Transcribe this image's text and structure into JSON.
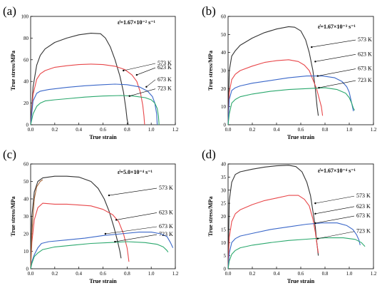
{
  "colors": {
    "573": "#333333",
    "623": "#e8474a",
    "673": "#3a67c9",
    "723": "#2aa86d",
    "brown": "#a9673a",
    "axis": "#000000"
  },
  "chart_data": [
    {
      "panel": "(a)",
      "type": "line",
      "rate_label": "ε̇=1.67×10⁻² s⁻¹",
      "xlabel": "True strain",
      "ylabel": "True stress/MPa",
      "xlim": [
        0,
        1.2
      ],
      "ylim": [
        0,
        100
      ],
      "xticks": [
        "0.0",
        "0.2",
        "0.4",
        "0.6",
        "0.8",
        "1.0",
        "1.2"
      ],
      "yticks": [
        "0",
        "20",
        "40",
        "60",
        "80",
        "100"
      ],
      "series": [
        {
          "name": "573 K",
          "color_key": "573",
          "x": [
            0,
            0.02,
            0.05,
            0.08,
            0.12,
            0.2,
            0.3,
            0.4,
            0.5,
            0.58,
            0.62,
            0.66,
            0.7,
            0.74,
            0.77,
            0.79,
            0.8,
            0.81
          ],
          "y": [
            0,
            35,
            55,
            64,
            70,
            76,
            80,
            83,
            84.5,
            84,
            80,
            72,
            60,
            45,
            30,
            15,
            5,
            0
          ]
        },
        {
          "name": "623 K",
          "color_key": "623",
          "x": [
            0,
            0.02,
            0.05,
            0.08,
            0.12,
            0.2,
            0.3,
            0.4,
            0.5,
            0.6,
            0.7,
            0.78,
            0.84,
            0.88,
            0.91,
            0.93,
            0.94,
            0.945
          ],
          "y": [
            0,
            28,
            42,
            47,
            50,
            53,
            54.5,
            55.5,
            56,
            55.5,
            54,
            51,
            46,
            40,
            30,
            18,
            8,
            0
          ]
        },
        {
          "name": "673 K",
          "color_key": "673",
          "x": [
            0,
            0.02,
            0.05,
            0.08,
            0.15,
            0.3,
            0.45,
            0.6,
            0.7,
            0.8,
            0.9,
            0.97,
            1.01,
            1.03,
            1.045,
            1.05
          ],
          "y": [
            0,
            22,
            29,
            31,
            32.5,
            34.5,
            36,
            37,
            37.5,
            37,
            35,
            31,
            26,
            20,
            10,
            0
          ]
        },
        {
          "name": "723 K",
          "color_key": "723",
          "x": [
            0,
            0.02,
            0.05,
            0.08,
            0.12,
            0.2,
            0.3,
            0.45,
            0.6,
            0.75,
            0.85,
            0.95,
            1.0,
            1.03,
            1.05,
            1.06,
            1.065
          ],
          "y": [
            0,
            10,
            17,
            20,
            22,
            23,
            24,
            25.5,
            26.5,
            27,
            26.5,
            25,
            23,
            20,
            15,
            8,
            0
          ]
        }
      ],
      "annotations": [
        {
          "text": "573 K",
          "series_index": 0,
          "at": [
            0.77,
            50
          ]
        },
        {
          "text": "623 K",
          "series_index": 1,
          "at": [
            0.88,
            46
          ]
        },
        {
          "text": "673 K",
          "series_index": 2,
          "at": [
            0.96,
            35
          ]
        },
        {
          "text": "723 K",
          "series_index": 3,
          "at": [
            0.82,
            26.5
          ]
        }
      ]
    },
    {
      "panel": "(b)",
      "type": "line",
      "rate_label": "ε̇=1.67×10⁻³ s⁻¹",
      "xlabel": "True strain",
      "ylabel": "True stress/MPa",
      "xlim": [
        0,
        1.2
      ],
      "ylim": [
        0,
        60
      ],
      "xticks": [
        "0.0",
        "0.2",
        "0.4",
        "0.6",
        "0.8",
        "1.0",
        "1.2"
      ],
      "yticks": [
        "0",
        "10",
        "20",
        "30",
        "40",
        "50",
        "60"
      ],
      "series": [
        {
          "name": "573 K",
          "color_key": "573",
          "x": [
            0,
            0.01,
            0.03,
            0.06,
            0.1,
            0.2,
            0.3,
            0.4,
            0.5,
            0.55,
            0.6,
            0.64,
            0.67,
            0.7,
            0.72,
            0.735,
            0.745
          ],
          "y": [
            0,
            30,
            38,
            41,
            44,
            48,
            51,
            53,
            54.3,
            54,
            52,
            47,
            40,
            30,
            20,
            10,
            5
          ]
        },
        {
          "name": "623 K",
          "color_key": "623",
          "x": [
            0,
            0.01,
            0.03,
            0.06,
            0.1,
            0.2,
            0.3,
            0.4,
            0.5,
            0.58,
            0.63,
            0.67,
            0.7,
            0.73,
            0.75,
            0.77,
            0.78
          ],
          "y": [
            0,
            18,
            25,
            28,
            30,
            32.5,
            34.5,
            35.5,
            36,
            35,
            33,
            30,
            25,
            20,
            15,
            10,
            5
          ]
        },
        {
          "name": "673 K",
          "color_key": "673",
          "x": [
            0,
            0.01,
            0.03,
            0.06,
            0.1,
            0.2,
            0.35,
            0.5,
            0.65,
            0.78,
            0.88,
            0.94,
            0.98,
            1.0,
            1.02,
            1.035
          ],
          "y": [
            0,
            14,
            19,
            20.5,
            21.5,
            23,
            24.5,
            26,
            27,
            27,
            26,
            24,
            21,
            18,
            12,
            7.5
          ]
        },
        {
          "name": "723 K",
          "color_key": "723",
          "x": [
            0,
            0.01,
            0.03,
            0.06,
            0.1,
            0.2,
            0.35,
            0.5,
            0.65,
            0.8,
            0.9,
            0.97,
            1.0,
            1.02,
            1.035,
            1.045
          ],
          "y": [
            0,
            6,
            12,
            14,
            15.5,
            17,
            18.5,
            19.5,
            20,
            20.5,
            19.5,
            17.5,
            15,
            12,
            9,
            8
          ]
        }
      ],
      "annotations": [
        {
          "text": "573 K",
          "series_index": 0,
          "at": [
            0.69,
            43
          ]
        },
        {
          "text": "623 K",
          "series_index": 1,
          "at": [
            0.72,
            35
          ]
        },
        {
          "text": "673 K",
          "series_index": 2,
          "at": [
            0.74,
            27
          ]
        },
        {
          "text": "723 K",
          "series_index": 3,
          "at": [
            0.75,
            20.5
          ]
        }
      ]
    },
    {
      "panel": "(c)",
      "type": "line",
      "rate_label": "ε̇=5.0×10⁻⁴ s⁻¹",
      "xlabel": "True strain",
      "ylabel": "True stress/MPa",
      "xlim": [
        0,
        1.2
      ],
      "ylim": [
        0,
        60
      ],
      "xticks": [
        "0.0",
        "0.2",
        "0.4",
        "0.6",
        "0.8",
        "1.0",
        "1.2"
      ],
      "yticks": [
        "0",
        "10",
        "20",
        "30",
        "40",
        "50",
        "60"
      ],
      "series": [
        {
          "name": "573 K",
          "color_key": "573",
          "x": [
            0,
            0.01,
            0.03,
            0.06,
            0.1,
            0.2,
            0.3,
            0.4,
            0.5,
            0.56,
            0.61,
            0.65,
            0.69,
            0.72,
            0.74,
            0.75
          ],
          "y": [
            0,
            30,
            44,
            50,
            52,
            53,
            53,
            52.5,
            50,
            46,
            40,
            33,
            24,
            16,
            10,
            6
          ]
        },
        {
          "name": "623 K",
          "color_key": "623",
          "x": [
            0,
            0.01,
            0.03,
            0.06,
            0.1,
            0.2,
            0.3,
            0.4,
            0.5,
            0.6,
            0.68,
            0.73,
            0.77,
            0.8,
            0.81,
            0.815
          ],
          "y": [
            0,
            15,
            28,
            35,
            37.5,
            37,
            37,
            36.5,
            36,
            34,
            31,
            27,
            20,
            12,
            7,
            4
          ]
        },
        {
          "name": "brown",
          "color_key": "brown",
          "x": [
            0,
            0.01,
            0.03,
            0.05,
            0.08,
            0.1
          ],
          "y": [
            0,
            20,
            40,
            47,
            50,
            51
          ]
        },
        {
          "name": "673 K",
          "color_key": "673",
          "x": [
            0,
            0.01,
            0.03,
            0.06,
            0.09,
            0.15,
            0.3,
            0.45,
            0.6,
            0.75,
            0.9,
            1.0,
            1.08,
            1.13,
            1.16,
            1.18
          ],
          "y": [
            0,
            4,
            8,
            12,
            14.5,
            15.5,
            16.5,
            17.5,
            19,
            20,
            21,
            21,
            20,
            18.5,
            15,
            12
          ]
        },
        {
          "name": "723 K",
          "color_key": "723",
          "x": [
            0,
            0.01,
            0.03,
            0.06,
            0.1,
            0.2,
            0.35,
            0.5,
            0.65,
            0.8,
            0.95,
            1.05,
            1.1,
            1.13,
            1.14
          ],
          "y": [
            0,
            3,
            7,
            9,
            11,
            12.5,
            13.5,
            14.5,
            15,
            15.5,
            15,
            14,
            12.5,
            10.5,
            9.5
          ]
        }
      ],
      "annotations": [
        {
          "text": "573 K",
          "series_index": 0,
          "at": [
            0.65,
            42
          ]
        },
        {
          "text": "623 K",
          "series_index": 1,
          "at": [
            0.71,
            28
          ]
        },
        {
          "text": "673 K",
          "series_index": 3,
          "at": [
            0.62,
            20
          ]
        },
        {
          "text": "723 K",
          "series_index": 4,
          "at": [
            0.7,
            15.5
          ]
        }
      ]
    },
    {
      "panel": "(d)",
      "type": "line",
      "rate_label": "ε̇=1.67×10⁻⁴ s⁻¹",
      "xlabel": "True strain",
      "ylabel": "True stress/MPa",
      "xlim": [
        0,
        1.2
      ],
      "ylim": [
        0,
        40
      ],
      "xticks": [
        "0.0",
        "0.2",
        "0.4",
        "0.6",
        "0.8",
        "1.0",
        "1.2"
      ],
      "yticks": [
        "0",
        "5",
        "10",
        "15",
        "20",
        "25",
        "30",
        "35",
        "40"
      ],
      "series": [
        {
          "name": "573 K",
          "color_key": "573",
          "x": [
            0,
            0.01,
            0.03,
            0.06,
            0.1,
            0.2,
            0.3,
            0.4,
            0.5,
            0.56,
            0.61,
            0.65,
            0.68,
            0.7,
            0.72,
            0.73,
            0.74,
            0.745
          ],
          "y": [
            0,
            26,
            33,
            36,
            37,
            38,
            38.8,
            39.3,
            39.5,
            39,
            37,
            33,
            28,
            22,
            16,
            11,
            7,
            5
          ]
        },
        {
          "name": "623 K",
          "color_key": "623",
          "x": [
            0,
            0.01,
            0.03,
            0.06,
            0.1,
            0.2,
            0.3,
            0.4,
            0.5,
            0.58,
            0.63,
            0.67,
            0.7,
            0.72,
            0.735,
            0.745
          ],
          "y": [
            0,
            12,
            18,
            21,
            22.5,
            24.5,
            26,
            27,
            28,
            28,
            26.5,
            24,
            19,
            14,
            9,
            6
          ]
        },
        {
          "name": "673 K",
          "color_key": "673",
          "x": [
            0,
            0.01,
            0.03,
            0.06,
            0.1,
            0.2,
            0.35,
            0.5,
            0.65,
            0.78,
            0.9,
            0.98,
            1.03,
            1.06,
            1.08,
            1.09
          ],
          "y": [
            0,
            6,
            10,
            11.5,
            12.5,
            13.5,
            15,
            16,
            17,
            17.5,
            17.5,
            16.5,
            15,
            13,
            11,
            9
          ]
        },
        {
          "name": "723 K",
          "color_key": "723",
          "x": [
            0,
            0.01,
            0.03,
            0.06,
            0.1,
            0.2,
            0.35,
            0.5,
            0.65,
            0.8,
            0.95,
            1.05,
            1.1,
            1.13
          ],
          "y": [
            0,
            3,
            5.5,
            7,
            8,
            9,
            10,
            10.8,
            11.3,
            11.8,
            11.8,
            11.2,
            10,
            8.5
          ]
        }
      ],
      "annotations": [
        {
          "text": "573 K",
          "series_index": 0,
          "at": [
            0.72,
            25
          ]
        },
        {
          "text": "623 K",
          "series_index": 1,
          "at": [
            0.72,
            21
          ]
        },
        {
          "text": "673 K",
          "series_index": 2,
          "at": [
            0.72,
            17.4
          ]
        },
        {
          "text": "723 K",
          "series_index": 3,
          "at": [
            0.74,
            11.5
          ]
        }
      ]
    }
  ]
}
